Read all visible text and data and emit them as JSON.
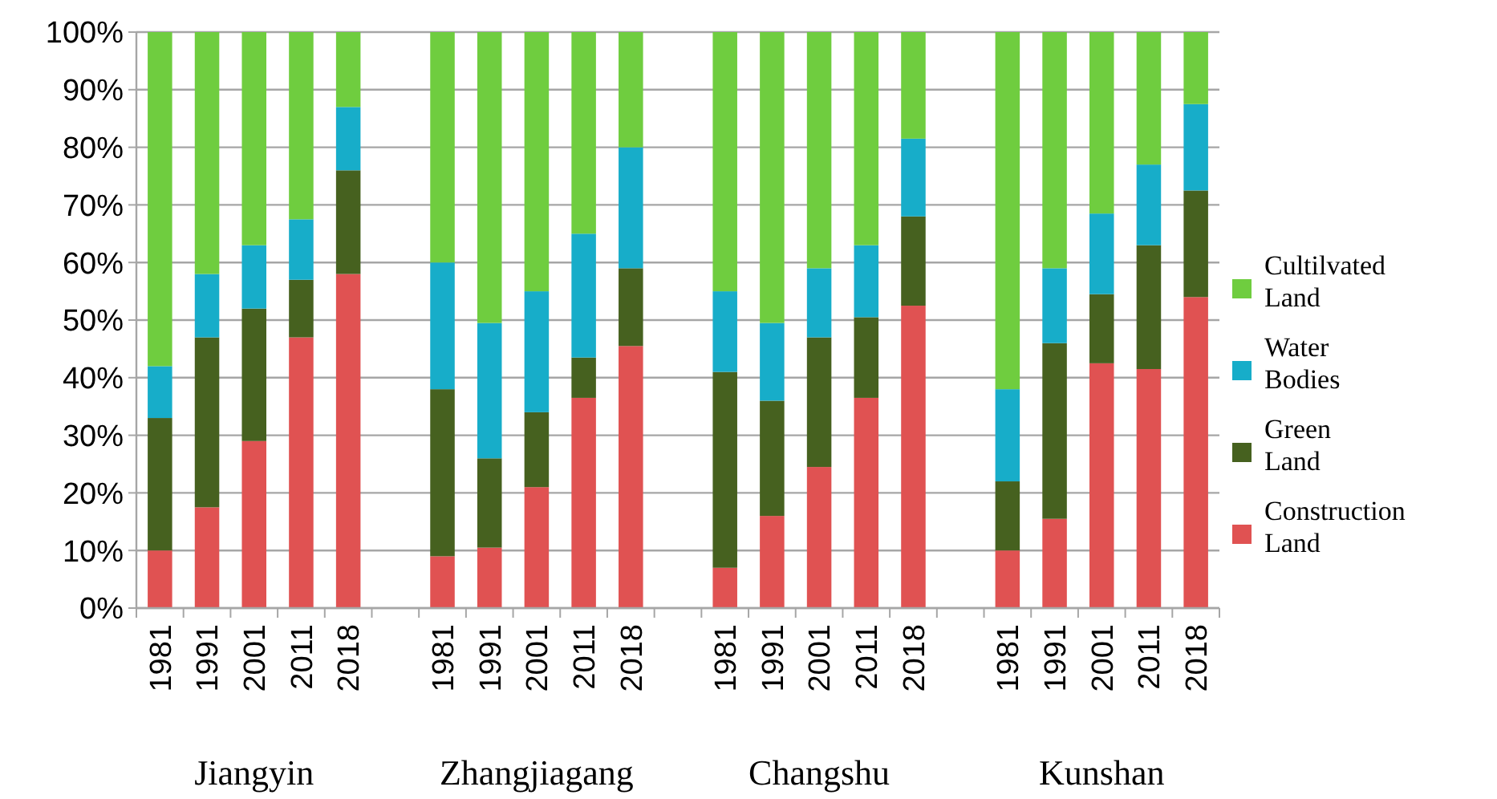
{
  "chart_data": {
    "type": "bar",
    "stacked": true,
    "categories": [
      "1981",
      "1991",
      "2001",
      "2011",
      "2018",
      null,
      "1981",
      "1991",
      "2001",
      "2011",
      "2018",
      null,
      "1981",
      "1991",
      "2001",
      "2011",
      "2018",
      null,
      "1981",
      "1991",
      "2001",
      "2011",
      "2018"
    ],
    "series": [
      {
        "name": "Construction Land",
        "color": "#e05252",
        "values": [
          10,
          17.5,
          29,
          47,
          58,
          null,
          9,
          10.5,
          21,
          36.5,
          45.5,
          null,
          7,
          16,
          24.5,
          36.5,
          52.5,
          null,
          10,
          15.5,
          42.5,
          41.5,
          54
        ]
      },
      {
        "name": "Green Land",
        "color": "#46611f",
        "values": [
          23,
          29.5,
          23,
          10,
          18,
          null,
          29,
          15.5,
          13,
          7,
          13.5,
          null,
          34,
          20,
          22.5,
          14,
          15.5,
          null,
          12,
          30.5,
          12,
          21.5,
          18.5
        ]
      },
      {
        "name": "Water Bodies",
        "color": "#17adc9",
        "values": [
          9,
          11,
          11,
          10.5,
          11,
          null,
          22,
          23.5,
          21,
          21.5,
          21,
          null,
          14,
          13.5,
          12,
          12.5,
          13.5,
          null,
          16,
          13,
          14,
          14,
          15
        ]
      },
      {
        "name": "Cultilvated Land",
        "color": "#6fcd3f",
        "values": [
          58,
          42,
          37,
          32.5,
          13,
          null,
          40,
          50.5,
          45,
          35,
          20,
          null,
          45,
          50.5,
          41,
          37,
          18.5,
          null,
          62,
          41,
          31.5,
          23,
          12.5
        ]
      }
    ],
    "ylim": [
      0,
      100
    ],
    "yticks": [
      {
        "value": 0,
        "label": "0%"
      },
      {
        "value": 10,
        "label": "10%"
      },
      {
        "value": 20,
        "label": "20%"
      },
      {
        "value": 30,
        "label": "30%"
      },
      {
        "value": 40,
        "label": "40%"
      },
      {
        "value": 50,
        "label": "50%"
      },
      {
        "value": 60,
        "label": "60%"
      },
      {
        "value": 70,
        "label": "70%"
      },
      {
        "value": 80,
        "label": "80%"
      },
      {
        "value": 90,
        "label": "90%"
      },
      {
        "value": 100,
        "label": "100%"
      }
    ],
    "grid": "y",
    "legend": "right",
    "annotations": [
      "Jiangyin",
      "Zhangjiagang",
      "Changshu",
      "Kunshan"
    ]
  }
}
